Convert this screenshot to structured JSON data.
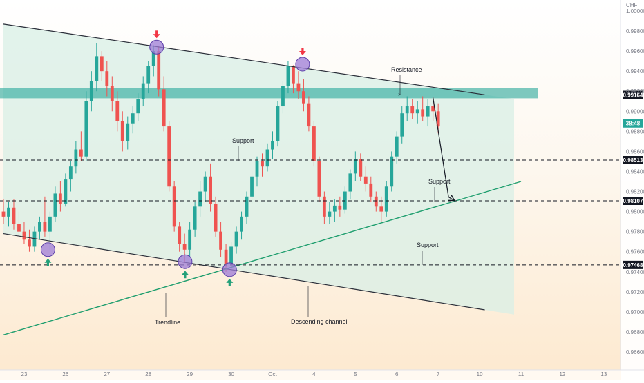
{
  "chart_data": {
    "type": "candlestick",
    "currency": "CHF",
    "ylim": [
      0.9655,
      1.001
    ],
    "y_ticks": [
      1.0,
      0.998,
      0.996,
      0.994,
      0.992,
      0.99,
      0.988,
      0.986,
      0.984,
      0.982,
      0.98,
      0.978,
      0.976,
      0.974,
      0.972,
      0.97,
      0.968,
      0.966
    ],
    "x_ticks": [
      {
        "label": "23",
        "idx": 4
      },
      {
        "label": "26",
        "idx": 12
      },
      {
        "label": "27",
        "idx": 20
      },
      {
        "label": "28",
        "idx": 28
      },
      {
        "label": "29",
        "idx": 36
      },
      {
        "label": "30",
        "idx": 44
      },
      {
        "label": "Oct",
        "idx": 52
      },
      {
        "label": "4",
        "idx": 60
      },
      {
        "label": "5",
        "idx": 68
      },
      {
        "label": "6",
        "idx": 76
      },
      {
        "label": "7",
        "idx": 84
      },
      {
        "label": "10",
        "idx": 92
      },
      {
        "label": "11",
        "idx": 100
      },
      {
        "label": "12",
        "idx": 108
      },
      {
        "label": "13",
        "idx": 116
      }
    ],
    "ohlc": [
      [
        0.98,
        0.9812,
        0.9788,
        0.9795
      ],
      [
        0.9795,
        0.981,
        0.9785,
        0.9804
      ],
      [
        0.9804,
        0.9812,
        0.9782,
        0.9788
      ],
      [
        0.9788,
        0.98,
        0.9775,
        0.978
      ],
      [
        0.978,
        0.979,
        0.9768,
        0.9772
      ],
      [
        0.9772,
        0.9782,
        0.976,
        0.9765
      ],
      [
        0.9765,
        0.9785,
        0.976,
        0.978
      ],
      [
        0.978,
        0.9795,
        0.9772,
        0.979
      ],
      [
        0.979,
        0.9815,
        0.9775,
        0.978
      ],
      [
        0.978,
        0.98,
        0.9762,
        0.9795
      ],
      [
        0.9795,
        0.9825,
        0.979,
        0.9818
      ],
      [
        0.9818,
        0.983,
        0.98,
        0.9808
      ],
      [
        0.9808,
        0.9838,
        0.9805,
        0.9832
      ],
      [
        0.9832,
        0.985,
        0.982,
        0.9845
      ],
      [
        0.9845,
        0.987,
        0.9838,
        0.9862
      ],
      [
        0.9862,
        0.988,
        0.985,
        0.9855
      ],
      [
        0.9855,
        0.992,
        0.985,
        0.991
      ],
      [
        0.991,
        0.994,
        0.99,
        0.993
      ],
      [
        0.993,
        0.9968,
        0.992,
        0.9955
      ],
      [
        0.9955,
        0.996,
        0.993,
        0.994
      ],
      [
        0.994,
        0.995,
        0.9915,
        0.9925
      ],
      [
        0.9925,
        0.9935,
        0.99,
        0.991
      ],
      [
        0.991,
        0.992,
        0.988,
        0.989
      ],
      [
        0.989,
        0.99,
        0.986,
        0.987
      ],
      [
        0.987,
        0.9895,
        0.9862,
        0.9888
      ],
      [
        0.9888,
        0.9905,
        0.9878,
        0.9898
      ],
      [
        0.9898,
        0.9918,
        0.989,
        0.9912
      ],
      [
        0.9912,
        0.9935,
        0.9905,
        0.9928
      ],
      [
        0.9928,
        0.995,
        0.9918,
        0.9945
      ],
      [
        0.9945,
        0.9966,
        0.9935,
        0.996
      ],
      [
        0.996,
        0.9965,
        0.9915,
        0.9922
      ],
      [
        0.9922,
        0.9935,
        0.988,
        0.9885
      ],
      [
        0.9885,
        0.989,
        0.982,
        0.9825
      ],
      [
        0.9825,
        0.983,
        0.978,
        0.9785
      ],
      [
        0.9785,
        0.979,
        0.976,
        0.9768
      ],
      [
        0.9768,
        0.9778,
        0.975,
        0.9762
      ],
      [
        0.9762,
        0.979,
        0.9755,
        0.9782
      ],
      [
        0.9782,
        0.981,
        0.9775,
        0.9805
      ],
      [
        0.9805,
        0.983,
        0.9795,
        0.982
      ],
      [
        0.982,
        0.984,
        0.981,
        0.9835
      ],
      [
        0.9835,
        0.9848,
        0.98,
        0.9808
      ],
      [
        0.9808,
        0.9815,
        0.9775,
        0.978
      ],
      [
        0.978,
        0.979,
        0.9755,
        0.9762
      ],
      [
        0.9762,
        0.9768,
        0.974,
        0.9748
      ],
      [
        0.9748,
        0.977,
        0.9742,
        0.9765
      ],
      [
        0.9765,
        0.9785,
        0.9758,
        0.978
      ],
      [
        0.978,
        0.98,
        0.9772,
        0.9795
      ],
      [
        0.9795,
        0.982,
        0.9788,
        0.9815
      ],
      [
        0.9815,
        0.984,
        0.9808,
        0.9835
      ],
      [
        0.9835,
        0.9855,
        0.9825,
        0.985
      ],
      [
        0.985,
        0.9858,
        0.9835,
        0.9845
      ],
      [
        0.9845,
        0.9868,
        0.984,
        0.9862
      ],
      [
        0.9862,
        0.988,
        0.9852,
        0.987
      ],
      [
        0.987,
        0.991,
        0.9865,
        0.9905
      ],
      [
        0.9905,
        0.993,
        0.9898,
        0.9925
      ],
      [
        0.9925,
        0.995,
        0.9918,
        0.9945
      ],
      [
        0.9945,
        0.9946,
        0.9918,
        0.9928
      ],
      [
        0.9928,
        0.994,
        0.9912,
        0.992
      ],
      [
        0.992,
        0.9932,
        0.99,
        0.9908
      ],
      [
        0.9908,
        0.9915,
        0.988,
        0.9885
      ],
      [
        0.9885,
        0.989,
        0.9845,
        0.985
      ],
      [
        0.985,
        0.9855,
        0.981,
        0.9815
      ],
      [
        0.9815,
        0.982,
        0.9788,
        0.9795
      ],
      [
        0.9795,
        0.981,
        0.9788,
        0.98
      ],
      [
        0.98,
        0.9812,
        0.979,
        0.9806
      ],
      [
        0.9806,
        0.9815,
        0.9795,
        0.9802
      ],
      [
        0.9802,
        0.9825,
        0.9798,
        0.982
      ],
      [
        0.982,
        0.9842,
        0.9812,
        0.9838
      ],
      [
        0.9838,
        0.986,
        0.983,
        0.9852
      ],
      [
        0.9852,
        0.9858,
        0.983,
        0.9835
      ],
      [
        0.9835,
        0.9845,
        0.982,
        0.9828
      ],
      [
        0.9828,
        0.9835,
        0.981,
        0.9815
      ],
      [
        0.9815,
        0.982,
        0.98,
        0.9805
      ],
      [
        0.9805,
        0.9815,
        0.979,
        0.98
      ],
      [
        0.98,
        0.983,
        0.9795,
        0.9825
      ],
      [
        0.9825,
        0.986,
        0.982,
        0.9855
      ],
      [
        0.9855,
        0.988,
        0.9848,
        0.9875
      ],
      [
        0.9875,
        0.9905,
        0.9868,
        0.9898
      ],
      [
        0.9898,
        0.9915,
        0.989,
        0.9905
      ],
      [
        0.9905,
        0.9912,
        0.9892,
        0.9898
      ],
      [
        0.9898,
        0.991,
        0.9888,
        0.9902
      ],
      [
        0.9902,
        0.9915,
        0.989,
        0.9895
      ],
      [
        0.9895,
        0.9912,
        0.9885,
        0.9905
      ],
      [
        0.9905,
        0.9914,
        0.989,
        0.99
      ],
      [
        0.99,
        0.9908,
        0.9878,
        0.9885
      ]
    ],
    "lines": {
      "channel_top": [
        [
          0,
          0.9987
        ],
        [
          93,
          0.99165
        ]
      ],
      "channel_bottom": [
        [
          0,
          0.9778
        ],
        [
          93,
          0.9702
        ]
      ],
      "trendline": [
        [
          0,
          0.9677
        ],
        [
          100,
          0.983
        ]
      ],
      "resistance_zone": [
        0.9913,
        0.9923
      ],
      "projection": [
        [
          83,
          0.99135
        ],
        [
          86,
          0.98145
        ],
        [
          87,
          0.98115
        ]
      ]
    },
    "levels": [
      {
        "value": 0.99164,
        "label": "0.99164",
        "style": "dark"
      },
      {
        "value": 0.98513,
        "label": "0.98513",
        "style": "dark"
      },
      {
        "value": 0.98107,
        "label": "0.98107",
        "style": "dark"
      },
      {
        "value": 0.97468,
        "label": "0.97468",
        "style": "dark"
      }
    ],
    "current_price_tag": {
      "value": 0.9888,
      "label": "38:48"
    },
    "annotations": [
      "Resistance",
      "Support",
      "Support",
      "Support",
      "Trendline",
      "Descending channel"
    ]
  },
  "annotation_text": {
    "resistance": "Resistance",
    "support_1": "Support",
    "support_2": "Support",
    "support_3": "Support",
    "trendline": "Trendline",
    "channel": "Descending channel"
  },
  "colors": {
    "up": "#26a69a",
    "down": "#ef5350",
    "zone": "#26a69a",
    "channel_fill": "#d8efe6",
    "marker": "#9c7bd6",
    "arrow_red": "#f23645",
    "arrow_green": "#22a07a"
  }
}
